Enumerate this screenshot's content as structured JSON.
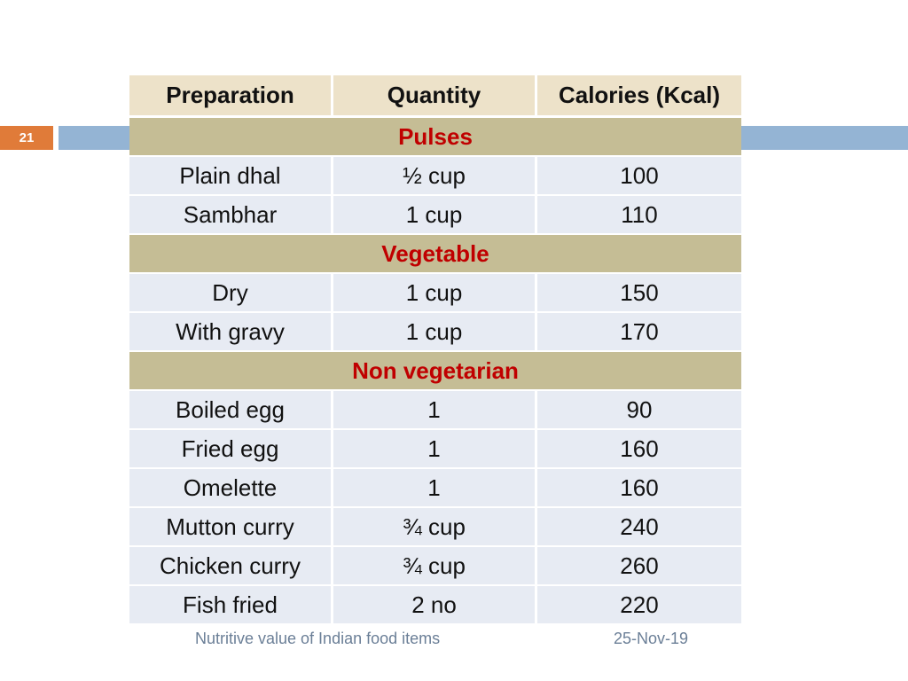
{
  "slide": {
    "number": "21",
    "accent_color": "#e07b39",
    "bar_color": "#94b4d4"
  },
  "table": {
    "headers": [
      "Preparation",
      "Quantity",
      "Calories (Kcal)"
    ],
    "sections": [
      {
        "title": "Pulses",
        "rows": [
          [
            "Plain dhal",
            "½ cup",
            "100"
          ],
          [
            "Sambhar",
            "1 cup",
            "110"
          ]
        ]
      },
      {
        "title": "Vegetable",
        "rows": [
          [
            "Dry",
            "1 cup",
            "150"
          ],
          [
            "With gravy",
            "1 cup",
            "170"
          ]
        ]
      },
      {
        "title": "Non vegetarian",
        "rows": [
          [
            "Boiled egg",
            "1",
            "90"
          ],
          [
            "Fried egg",
            "1",
            "160"
          ],
          [
            "Omelette",
            "1",
            "160"
          ],
          [
            "Mutton curry",
            "¾ cup",
            "240"
          ],
          [
            "Chicken curry",
            "¾ cup",
            "260"
          ],
          [
            "Fish fried",
            "2 no",
            "220"
          ]
        ]
      }
    ],
    "header_color": "#ede2c9",
    "section_color": "#c5bd95",
    "section_text_color": "#c00000",
    "row_color": "#e7ebf3"
  },
  "footer": {
    "title": "Nutritive value of Indian food items",
    "date": "25-Nov-19"
  }
}
